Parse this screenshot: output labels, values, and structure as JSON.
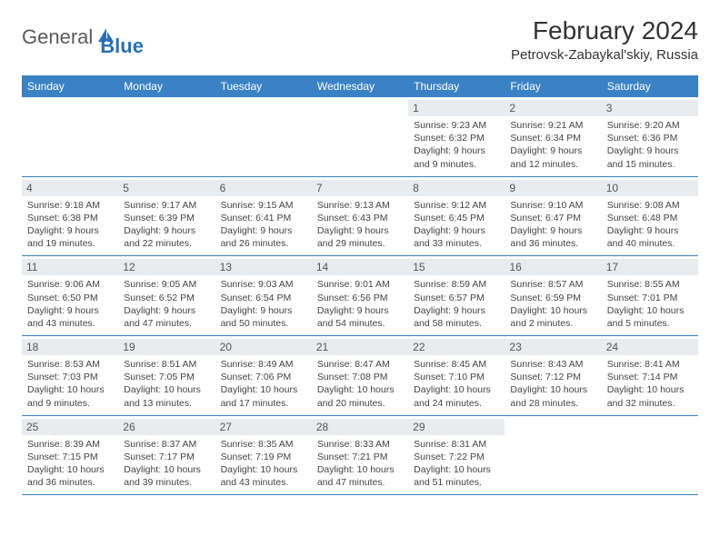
{
  "logo": {
    "text1": "General",
    "text2": "Blue"
  },
  "title": "February 2024",
  "location": "Petrovsk-Zabaykal'skiy, Russia",
  "colors": {
    "headerBg": "#3a82c4",
    "headerText": "#ffffff",
    "dateBarBg": "#e8ecef",
    "weekBorder": "#3a82c4",
    "bodyText": "#444444",
    "logoGray": "#5a5a5a",
    "logoBlue": "#2a6fb5"
  },
  "dayNames": [
    "Sunday",
    "Monday",
    "Tuesday",
    "Wednesday",
    "Thursday",
    "Friday",
    "Saturday"
  ],
  "weeks": [
    [
      {
        "date": null
      },
      {
        "date": null
      },
      {
        "date": null
      },
      {
        "date": null
      },
      {
        "date": "1",
        "sunrise": "Sunrise: 9:23 AM",
        "sunset": "Sunset: 6:32 PM",
        "daylight": "Daylight: 9 hours and 9 minutes."
      },
      {
        "date": "2",
        "sunrise": "Sunrise: 9:21 AM",
        "sunset": "Sunset: 6:34 PM",
        "daylight": "Daylight: 9 hours and 12 minutes."
      },
      {
        "date": "3",
        "sunrise": "Sunrise: 9:20 AM",
        "sunset": "Sunset: 6:36 PM",
        "daylight": "Daylight: 9 hours and 15 minutes."
      }
    ],
    [
      {
        "date": "4",
        "sunrise": "Sunrise: 9:18 AM",
        "sunset": "Sunset: 6:38 PM",
        "daylight": "Daylight: 9 hours and 19 minutes."
      },
      {
        "date": "5",
        "sunrise": "Sunrise: 9:17 AM",
        "sunset": "Sunset: 6:39 PM",
        "daylight": "Daylight: 9 hours and 22 minutes."
      },
      {
        "date": "6",
        "sunrise": "Sunrise: 9:15 AM",
        "sunset": "Sunset: 6:41 PM",
        "daylight": "Daylight: 9 hours and 26 minutes."
      },
      {
        "date": "7",
        "sunrise": "Sunrise: 9:13 AM",
        "sunset": "Sunset: 6:43 PM",
        "daylight": "Daylight: 9 hours and 29 minutes."
      },
      {
        "date": "8",
        "sunrise": "Sunrise: 9:12 AM",
        "sunset": "Sunset: 6:45 PM",
        "daylight": "Daylight: 9 hours and 33 minutes."
      },
      {
        "date": "9",
        "sunrise": "Sunrise: 9:10 AM",
        "sunset": "Sunset: 6:47 PM",
        "daylight": "Daylight: 9 hours and 36 minutes."
      },
      {
        "date": "10",
        "sunrise": "Sunrise: 9:08 AM",
        "sunset": "Sunset: 6:48 PM",
        "daylight": "Daylight: 9 hours and 40 minutes."
      }
    ],
    [
      {
        "date": "11",
        "sunrise": "Sunrise: 9:06 AM",
        "sunset": "Sunset: 6:50 PM",
        "daylight": "Daylight: 9 hours and 43 minutes."
      },
      {
        "date": "12",
        "sunrise": "Sunrise: 9:05 AM",
        "sunset": "Sunset: 6:52 PM",
        "daylight": "Daylight: 9 hours and 47 minutes."
      },
      {
        "date": "13",
        "sunrise": "Sunrise: 9:03 AM",
        "sunset": "Sunset: 6:54 PM",
        "daylight": "Daylight: 9 hours and 50 minutes."
      },
      {
        "date": "14",
        "sunrise": "Sunrise: 9:01 AM",
        "sunset": "Sunset: 6:56 PM",
        "daylight": "Daylight: 9 hours and 54 minutes."
      },
      {
        "date": "15",
        "sunrise": "Sunrise: 8:59 AM",
        "sunset": "Sunset: 6:57 PM",
        "daylight": "Daylight: 9 hours and 58 minutes."
      },
      {
        "date": "16",
        "sunrise": "Sunrise: 8:57 AM",
        "sunset": "Sunset: 6:59 PM",
        "daylight": "Daylight: 10 hours and 2 minutes."
      },
      {
        "date": "17",
        "sunrise": "Sunrise: 8:55 AM",
        "sunset": "Sunset: 7:01 PM",
        "daylight": "Daylight: 10 hours and 5 minutes."
      }
    ],
    [
      {
        "date": "18",
        "sunrise": "Sunrise: 8:53 AM",
        "sunset": "Sunset: 7:03 PM",
        "daylight": "Daylight: 10 hours and 9 minutes."
      },
      {
        "date": "19",
        "sunrise": "Sunrise: 8:51 AM",
        "sunset": "Sunset: 7:05 PM",
        "daylight": "Daylight: 10 hours and 13 minutes."
      },
      {
        "date": "20",
        "sunrise": "Sunrise: 8:49 AM",
        "sunset": "Sunset: 7:06 PM",
        "daylight": "Daylight: 10 hours and 17 minutes."
      },
      {
        "date": "21",
        "sunrise": "Sunrise: 8:47 AM",
        "sunset": "Sunset: 7:08 PM",
        "daylight": "Daylight: 10 hours and 20 minutes."
      },
      {
        "date": "22",
        "sunrise": "Sunrise: 8:45 AM",
        "sunset": "Sunset: 7:10 PM",
        "daylight": "Daylight: 10 hours and 24 minutes."
      },
      {
        "date": "23",
        "sunrise": "Sunrise: 8:43 AM",
        "sunset": "Sunset: 7:12 PM",
        "daylight": "Daylight: 10 hours and 28 minutes."
      },
      {
        "date": "24",
        "sunrise": "Sunrise: 8:41 AM",
        "sunset": "Sunset: 7:14 PM",
        "daylight": "Daylight: 10 hours and 32 minutes."
      }
    ],
    [
      {
        "date": "25",
        "sunrise": "Sunrise: 8:39 AM",
        "sunset": "Sunset: 7:15 PM",
        "daylight": "Daylight: 10 hours and 36 minutes."
      },
      {
        "date": "26",
        "sunrise": "Sunrise: 8:37 AM",
        "sunset": "Sunset: 7:17 PM",
        "daylight": "Daylight: 10 hours and 39 minutes."
      },
      {
        "date": "27",
        "sunrise": "Sunrise: 8:35 AM",
        "sunset": "Sunset: 7:19 PM",
        "daylight": "Daylight: 10 hours and 43 minutes."
      },
      {
        "date": "28",
        "sunrise": "Sunrise: 8:33 AM",
        "sunset": "Sunset: 7:21 PM",
        "daylight": "Daylight: 10 hours and 47 minutes."
      },
      {
        "date": "29",
        "sunrise": "Sunrise: 8:31 AM",
        "sunset": "Sunset: 7:22 PM",
        "daylight": "Daylight: 10 hours and 51 minutes."
      },
      {
        "date": null
      },
      {
        "date": null
      }
    ]
  ]
}
